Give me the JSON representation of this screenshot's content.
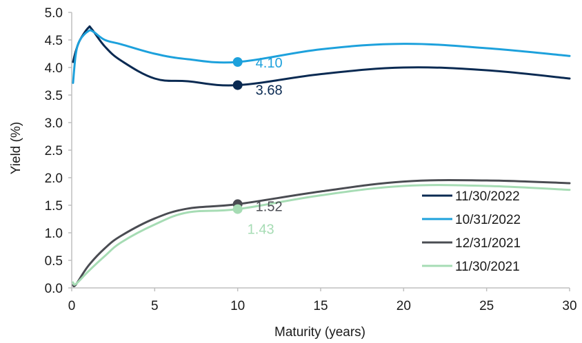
{
  "chart_data": {
    "type": "line",
    "xlabel": "Maturity (years)",
    "ylabel": "Yield (%)",
    "xlim": [
      0,
      30
    ],
    "ylim": [
      0.0,
      5.0
    ],
    "x_ticks": [
      "0",
      "5",
      "10",
      "15",
      "20",
      "25",
      "30"
    ],
    "y_ticks": [
      "0.0",
      "0.5",
      "1.0",
      "1.5",
      "2.0",
      "2.5",
      "3.0",
      "3.5",
      "4.0",
      "4.5",
      "5.0"
    ],
    "grid": false,
    "legend_position": "bottom-right",
    "series": [
      {
        "name": "11/30/2022",
        "color": "#0a2a52",
        "x": [
          0.08,
          0.25,
          0.5,
          1,
          1.2,
          2,
          3,
          5,
          7,
          10,
          15,
          20,
          25,
          30
        ],
        "y": [
          4.1,
          4.3,
          4.5,
          4.72,
          4.7,
          4.38,
          4.12,
          3.8,
          3.75,
          3.68,
          3.88,
          4.0,
          3.95,
          3.8
        ],
        "marker": {
          "x": 10,
          "y": 3.68,
          "label": "3.68"
        }
      },
      {
        "name": "10/31/2022",
        "color": "#1da1dc",
        "x": [
          0.08,
          0.25,
          0.5,
          1,
          1.3,
          2,
          3,
          5,
          7,
          10,
          15,
          20,
          25,
          30
        ],
        "y": [
          3.72,
          4.25,
          4.5,
          4.66,
          4.65,
          4.5,
          4.42,
          4.25,
          4.15,
          4.1,
          4.33,
          4.43,
          4.35,
          4.21
        ],
        "marker": {
          "x": 10,
          "y": 4.1,
          "label": "4.10"
        }
      },
      {
        "name": "12/31/2021",
        "color": "#4a4c52",
        "x": [
          0.08,
          0.25,
          1,
          2,
          3,
          5,
          7,
          10,
          15,
          20,
          25,
          30
        ],
        "y": [
          0.05,
          0.06,
          0.4,
          0.72,
          0.95,
          1.26,
          1.44,
          1.52,
          1.75,
          1.93,
          1.95,
          1.9
        ],
        "marker": {
          "x": 10,
          "y": 1.52,
          "label": "1.52"
        }
      },
      {
        "name": "11/30/2021",
        "color": "#a6dcb4",
        "x": [
          0.08,
          0.25,
          1,
          2,
          3,
          5,
          7,
          10,
          15,
          20,
          25,
          30
        ],
        "y": [
          0.1,
          0.07,
          0.3,
          0.58,
          0.83,
          1.15,
          1.37,
          1.43,
          1.68,
          1.85,
          1.85,
          1.78
        ],
        "marker": {
          "x": 10,
          "y": 1.43,
          "label": "1.43"
        }
      }
    ]
  }
}
